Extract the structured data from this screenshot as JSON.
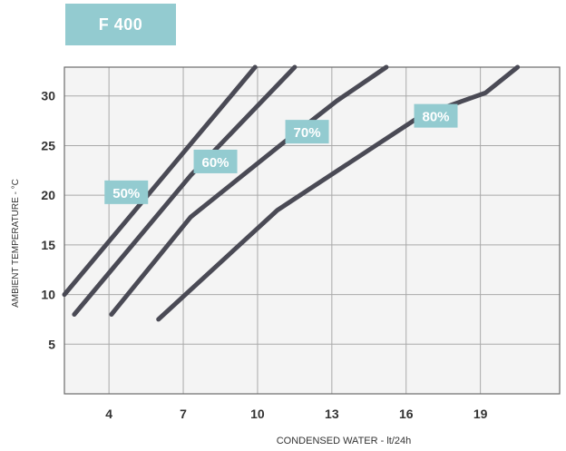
{
  "chart_data": {
    "type": "line",
    "title": "F 400",
    "xlabel": "CONDENSED WATER - lt/24h",
    "ylabel": "AMBIENT TEMPERATURE - °C",
    "xlim": [
      2.2,
      22.2
    ],
    "ylim": [
      0,
      32.9
    ],
    "x_ticks": [
      4,
      7,
      10,
      13,
      16,
      19
    ],
    "y_ticks": [
      5,
      10,
      15,
      20,
      25,
      30
    ],
    "grid": true,
    "series": [
      {
        "name": "50%",
        "points": [
          [
            2.2,
            10.0
          ],
          [
            9.9,
            32.9
          ]
        ]
      },
      {
        "name": "60%",
        "points": [
          [
            2.6,
            8.0
          ],
          [
            7.3,
            22.0
          ],
          [
            11.5,
            32.9
          ]
        ]
      },
      {
        "name": "70%",
        "points": [
          [
            4.1,
            8.0
          ],
          [
            7.3,
            17.8
          ],
          [
            10.9,
            25.0
          ],
          [
            13.2,
            29.5
          ],
          [
            15.2,
            32.9
          ]
        ]
      },
      {
        "name": "80%",
        "points": [
          [
            6.0,
            7.5
          ],
          [
            10.8,
            18.5
          ],
          [
            16.6,
            28.0
          ],
          [
            19.2,
            30.3
          ],
          [
            20.5,
            32.9
          ]
        ]
      }
    ],
    "labels": [
      {
        "text": "50%",
        "x": 4.7,
        "y": 20.3
      },
      {
        "text": "60%",
        "x": 8.3,
        "y": 23.4
      },
      {
        "text": "70%",
        "x": 12.0,
        "y": 26.4
      },
      {
        "text": "80%",
        "x": 17.2,
        "y": 28.0
      }
    ],
    "colors": {
      "line": "#4a4a55",
      "badge": "#93cbd0",
      "plot_bg": "#f4f4f4",
      "grid": "#a9a9a9",
      "text": "#333333",
      "badge_text": "#ffffff"
    }
  }
}
